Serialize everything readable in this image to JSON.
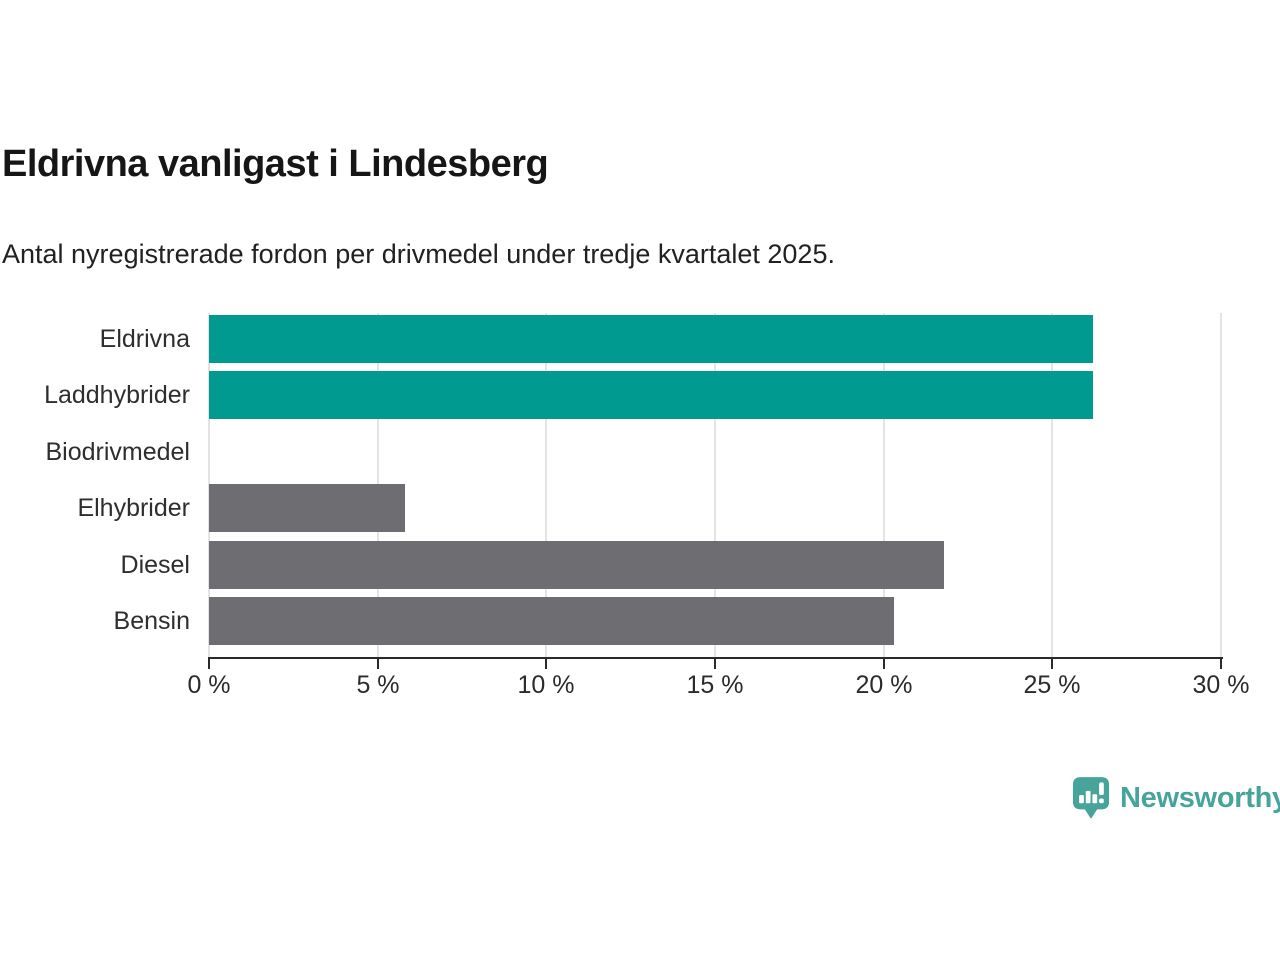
{
  "header": {
    "title": "Eldrivna vanligast i Lindesberg",
    "subtitle": "Antal nyregistrerade fordon per drivmedel under tredje kvartalet 2025."
  },
  "chart_data": {
    "type": "bar",
    "orientation": "horizontal",
    "categories": [
      "Eldrivna",
      "Laddhybrider",
      "Biodrivmedel",
      "Elhybrider",
      "Diesel",
      "Bensin"
    ],
    "values": [
      26.2,
      26.2,
      0,
      5.8,
      21.8,
      20.3
    ],
    "unit": "%",
    "xlim": [
      0,
      30
    ],
    "xticks": [
      0,
      5,
      10,
      15,
      20,
      25,
      30
    ],
    "xtick_labels": [
      "0 %",
      "5 %",
      "10 %",
      "15 %",
      "20 %",
      "25 %",
      "30 %"
    ],
    "bar_colors": [
      "#009a91",
      "#009a91",
      "#009a91",
      "#6e6e72",
      "#6e6e72",
      "#6e6e72"
    ],
    "grid": true,
    "legend": "none",
    "colors": {
      "highlight": "#009a91",
      "muted": "#6e6e72",
      "gridline": "#e4e4e4",
      "axis": "#2a2a2a"
    }
  },
  "footer": {
    "brand": "Newsworthy",
    "brand_color": "#47a49b",
    "logo_icon": "newsworthy-pin-chart-icon"
  }
}
